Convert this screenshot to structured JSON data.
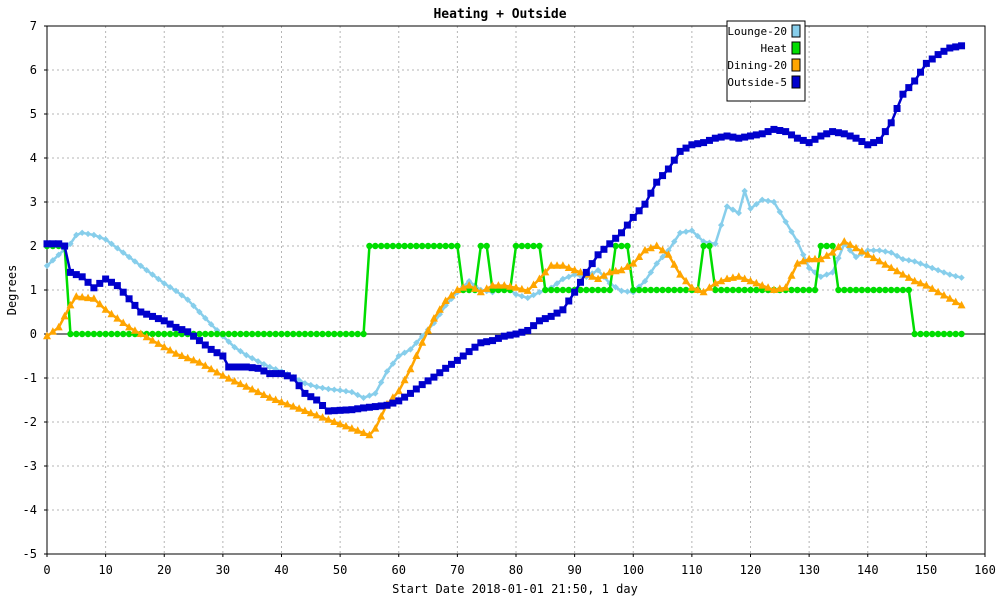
{
  "chart_data": {
    "type": "line",
    "title": "Heating + Outside",
    "xlabel": "Start Date 2018-01-01 21:50, 1 day",
    "ylabel": "Degrees",
    "xlim": [
      0,
      160
    ],
    "ylim": [
      -5,
      7
    ],
    "xticks": [
      0,
      10,
      20,
      30,
      40,
      50,
      60,
      70,
      80,
      90,
      100,
      110,
      120,
      130,
      140,
      150,
      160
    ],
    "yticks": [
      -5,
      -4,
      -3,
      -2,
      -1,
      0,
      1,
      2,
      3,
      4,
      5,
      6,
      7
    ],
    "grid": true,
    "legend_position": "top-right",
    "series": [
      {
        "name": "Lounge-20",
        "color": "#87CEEB",
        "marker": "diamond",
        "values": [
          [
            0,
            1.55
          ],
          [
            2,
            1.8
          ],
          [
            4,
            2.05
          ],
          [
            5,
            2.25
          ],
          [
            6,
            2.3
          ],
          [
            8,
            2.25
          ],
          [
            10,
            2.15
          ],
          [
            12,
            1.95
          ],
          [
            14,
            1.75
          ],
          [
            16,
            1.55
          ],
          [
            18,
            1.35
          ],
          [
            20,
            1.15
          ],
          [
            22,
            0.98
          ],
          [
            24,
            0.78
          ],
          [
            26,
            0.5
          ],
          [
            28,
            0.22
          ],
          [
            30,
            -0.05
          ],
          [
            32,
            -0.3
          ],
          [
            34,
            -0.48
          ],
          [
            36,
            -0.62
          ],
          [
            38,
            -0.75
          ],
          [
            40,
            -0.85
          ],
          [
            42,
            -0.98
          ],
          [
            44,
            -1.12
          ],
          [
            46,
            -1.2
          ],
          [
            48,
            -1.25
          ],
          [
            50,
            -1.28
          ],
          [
            52,
            -1.32
          ],
          [
            54,
            -1.45
          ],
          [
            56,
            -1.35
          ],
          [
            58,
            -0.85
          ],
          [
            60,
            -0.5
          ],
          [
            62,
            -0.35
          ],
          [
            64,
            -0.05
          ],
          [
            66,
            0.25
          ],
          [
            68,
            0.65
          ],
          [
            70,
            0.95
          ],
          [
            72,
            1.2
          ],
          [
            74,
            1.0
          ],
          [
            76,
            0.95
          ],
          [
            78,
            1.1
          ],
          [
            80,
            0.9
          ],
          [
            82,
            0.82
          ],
          [
            84,
            0.95
          ],
          [
            86,
            1.05
          ],
          [
            88,
            1.25
          ],
          [
            90,
            1.35
          ],
          [
            92,
            1.3
          ],
          [
            94,
            1.45
          ],
          [
            96,
            1.15
          ],
          [
            98,
            0.98
          ],
          [
            100,
            0.95
          ],
          [
            102,
            1.2
          ],
          [
            104,
            1.6
          ],
          [
            106,
            1.9
          ],
          [
            108,
            2.3
          ],
          [
            110,
            2.35
          ],
          [
            112,
            2.1
          ],
          [
            114,
            2.05
          ],
          [
            116,
            2.9
          ],
          [
            118,
            2.75
          ],
          [
            119,
            3.25
          ],
          [
            120,
            2.85
          ],
          [
            122,
            3.05
          ],
          [
            124,
            3.0
          ],
          [
            126,
            2.55
          ],
          [
            128,
            2.1
          ],
          [
            130,
            1.5
          ],
          [
            132,
            1.3
          ],
          [
            134,
            1.4
          ],
          [
            136,
            2.05
          ],
          [
            138,
            1.75
          ],
          [
            140,
            1.9
          ],
          [
            142,
            1.9
          ],
          [
            144,
            1.85
          ],
          [
            146,
            1.7
          ],
          [
            148,
            1.65
          ],
          [
            150,
            1.55
          ],
          [
            152,
            1.45
          ],
          [
            154,
            1.35
          ],
          [
            156,
            1.28
          ]
        ]
      },
      {
        "name": "Heat",
        "color": "#00DD00",
        "marker": "circle",
        "values": [
          [
            0,
            2
          ],
          [
            3,
            2
          ],
          [
            4,
            0
          ],
          [
            54,
            0
          ],
          [
            55,
            2
          ],
          [
            70,
            2
          ],
          [
            71,
            1
          ],
          [
            73,
            1
          ],
          [
            74,
            2
          ],
          [
            75,
            2
          ],
          [
            76,
            1
          ],
          [
            79,
            1
          ],
          [
            80,
            2
          ],
          [
            84,
            2
          ],
          [
            85,
            1
          ],
          [
            96,
            1
          ],
          [
            97,
            2
          ],
          [
            99,
            2
          ],
          [
            100,
            1
          ],
          [
            111,
            1
          ],
          [
            112,
            2
          ],
          [
            113,
            2
          ],
          [
            114,
            1
          ],
          [
            131,
            1
          ],
          [
            132,
            2
          ],
          [
            134,
            2
          ],
          [
            135,
            1
          ],
          [
            147,
            1
          ],
          [
            148,
            0
          ],
          [
            156,
            0
          ]
        ]
      },
      {
        "name": "Dining-20",
        "color": "#FFA500",
        "marker": "triangle",
        "values": [
          [
            0,
            -0.05
          ],
          [
            2,
            0.15
          ],
          [
            4,
            0.65
          ],
          [
            5,
            0.85
          ],
          [
            8,
            0.8
          ],
          [
            10,
            0.55
          ],
          [
            12,
            0.35
          ],
          [
            14,
            0.15
          ],
          [
            16,
            0.0
          ],
          [
            18,
            -0.15
          ],
          [
            20,
            -0.3
          ],
          [
            22,
            -0.45
          ],
          [
            24,
            -0.55
          ],
          [
            26,
            -0.65
          ],
          [
            28,
            -0.8
          ],
          [
            30,
            -0.95
          ],
          [
            32,
            -1.08
          ],
          [
            34,
            -1.2
          ],
          [
            36,
            -1.32
          ],
          [
            38,
            -1.45
          ],
          [
            40,
            -1.55
          ],
          [
            42,
            -1.65
          ],
          [
            44,
            -1.75
          ],
          [
            46,
            -1.85
          ],
          [
            48,
            -1.95
          ],
          [
            50,
            -2.05
          ],
          [
            52,
            -2.15
          ],
          [
            54,
            -2.25
          ],
          [
            55,
            -2.3
          ],
          [
            56,
            -2.15
          ],
          [
            58,
            -1.6
          ],
          [
            60,
            -1.3
          ],
          [
            62,
            -0.8
          ],
          [
            64,
            -0.2
          ],
          [
            66,
            0.35
          ],
          [
            68,
            0.75
          ],
          [
            70,
            1.0
          ],
          [
            72,
            1.1
          ],
          [
            74,
            0.95
          ],
          [
            76,
            1.1
          ],
          [
            78,
            1.1
          ],
          [
            80,
            1.05
          ],
          [
            82,
            0.98
          ],
          [
            84,
            1.25
          ],
          [
            86,
            1.55
          ],
          [
            88,
            1.55
          ],
          [
            90,
            1.45
          ],
          [
            92,
            1.35
          ],
          [
            94,
            1.25
          ],
          [
            96,
            1.4
          ],
          [
            98,
            1.45
          ],
          [
            100,
            1.6
          ],
          [
            102,
            1.9
          ],
          [
            104,
            2.0
          ],
          [
            106,
            1.8
          ],
          [
            108,
            1.35
          ],
          [
            110,
            1.05
          ],
          [
            112,
            0.95
          ],
          [
            114,
            1.15
          ],
          [
            116,
            1.25
          ],
          [
            118,
            1.3
          ],
          [
            120,
            1.2
          ],
          [
            122,
            1.1
          ],
          [
            124,
            1.0
          ],
          [
            126,
            1.05
          ],
          [
            128,
            1.6
          ],
          [
            130,
            1.7
          ],
          [
            132,
            1.7
          ],
          [
            134,
            1.85
          ],
          [
            136,
            2.1
          ],
          [
            138,
            1.95
          ],
          [
            140,
            1.8
          ],
          [
            142,
            1.65
          ],
          [
            144,
            1.5
          ],
          [
            146,
            1.35
          ],
          [
            148,
            1.2
          ],
          [
            150,
            1.1
          ],
          [
            152,
            0.95
          ],
          [
            154,
            0.8
          ],
          [
            156,
            0.65
          ]
        ]
      },
      {
        "name": "Outside-5",
        "color": "#0000CC",
        "marker": "square",
        "values": [
          [
            0,
            2.05
          ],
          [
            2,
            2.05
          ],
          [
            3,
            2.0
          ],
          [
            4,
            1.4
          ],
          [
            6,
            1.3
          ],
          [
            8,
            1.05
          ],
          [
            10,
            1.25
          ],
          [
            12,
            1.1
          ],
          [
            14,
            0.8
          ],
          [
            16,
            0.5
          ],
          [
            18,
            0.4
          ],
          [
            20,
            0.3
          ],
          [
            22,
            0.15
          ],
          [
            24,
            0.05
          ],
          [
            26,
            -0.15
          ],
          [
            28,
            -0.35
          ],
          [
            30,
            -0.5
          ],
          [
            31,
            -0.75
          ],
          [
            34,
            -0.75
          ],
          [
            36,
            -0.78
          ],
          [
            38,
            -0.9
          ],
          [
            40,
            -0.9
          ],
          [
            42,
            -1.0
          ],
          [
            44,
            -1.35
          ],
          [
            46,
            -1.5
          ],
          [
            48,
            -1.75
          ],
          [
            52,
            -1.72
          ],
          [
            54,
            -1.68
          ],
          [
            58,
            -1.62
          ],
          [
            60,
            -1.52
          ],
          [
            62,
            -1.35
          ],
          [
            64,
            -1.15
          ],
          [
            66,
            -0.98
          ],
          [
            68,
            -0.78
          ],
          [
            70,
            -0.6
          ],
          [
            72,
            -0.4
          ],
          [
            74,
            -0.2
          ],
          [
            76,
            -0.15
          ],
          [
            78,
            -0.05
          ],
          [
            80,
            0.0
          ],
          [
            82,
            0.08
          ],
          [
            84,
            0.3
          ],
          [
            86,
            0.4
          ],
          [
            88,
            0.55
          ],
          [
            90,
            0.95
          ],
          [
            92,
            1.4
          ],
          [
            94,
            1.8
          ],
          [
            96,
            2.05
          ],
          [
            98,
            2.3
          ],
          [
            100,
            2.65
          ],
          [
            102,
            2.95
          ],
          [
            104,
            3.45
          ],
          [
            106,
            3.75
          ],
          [
            108,
            4.15
          ],
          [
            110,
            4.3
          ],
          [
            112,
            4.35
          ],
          [
            114,
            4.45
          ],
          [
            116,
            4.5
          ],
          [
            118,
            4.45
          ],
          [
            120,
            4.5
          ],
          [
            122,
            4.55
          ],
          [
            124,
            4.65
          ],
          [
            126,
            4.6
          ],
          [
            128,
            4.45
          ],
          [
            130,
            4.35
          ],
          [
            132,
            4.5
          ],
          [
            134,
            4.6
          ],
          [
            136,
            4.55
          ],
          [
            138,
            4.45
          ],
          [
            140,
            4.3
          ],
          [
            142,
            4.4
          ],
          [
            144,
            4.8
          ],
          [
            146,
            5.45
          ],
          [
            148,
            5.75
          ],
          [
            150,
            6.15
          ],
          [
            152,
            6.35
          ],
          [
            154,
            6.5
          ],
          [
            156,
            6.55
          ]
        ]
      }
    ]
  }
}
